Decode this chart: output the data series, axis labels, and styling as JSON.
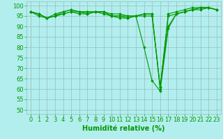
{
  "title": "",
  "xlabel": "Humidité relative (%)",
  "ylabel": "",
  "background_color": "#b2eeee",
  "grid_color": "#99bbbb",
  "line_color": "#009900",
  "marker_color": "#009900",
  "xlim": [
    -0.5,
    23.5
  ],
  "ylim": [
    48,
    102
  ],
  "yticks": [
    50,
    55,
    60,
    65,
    70,
    75,
    80,
    85,
    90,
    95,
    100
  ],
  "xticks": [
    0,
    1,
    2,
    3,
    4,
    5,
    6,
    7,
    8,
    9,
    10,
    11,
    12,
    13,
    14,
    15,
    16,
    17,
    18,
    19,
    20,
    21,
    22,
    23
  ],
  "series": [
    [
      97,
      96,
      94,
      95,
      96,
      97,
      97,
      97,
      97,
      97,
      95,
      94,
      94,
      95,
      80,
      64,
      59,
      89,
      96,
      97,
      98,
      99,
      99,
      98
    ],
    [
      97,
      96,
      94,
      96,
      97,
      98,
      97,
      96,
      97,
      97,
      95,
      95,
      95,
      95,
      96,
      96,
      61,
      95,
      96,
      97,
      98,
      98,
      99,
      98
    ],
    [
      97,
      95,
      94,
      95,
      96,
      97,
      96,
      96,
      97,
      96,
      95,
      95,
      94,
      95,
      95,
      95,
      61,
      90,
      96,
      97,
      98,
      99,
      99,
      98
    ],
    [
      97,
      96,
      94,
      95,
      97,
      98,
      97,
      97,
      97,
      97,
      96,
      96,
      95,
      95,
      96,
      96,
      60,
      96,
      97,
      98,
      99,
      99,
      99,
      98
    ]
  ],
  "xlabel_fontsize": 7,
  "tick_fontsize": 6
}
